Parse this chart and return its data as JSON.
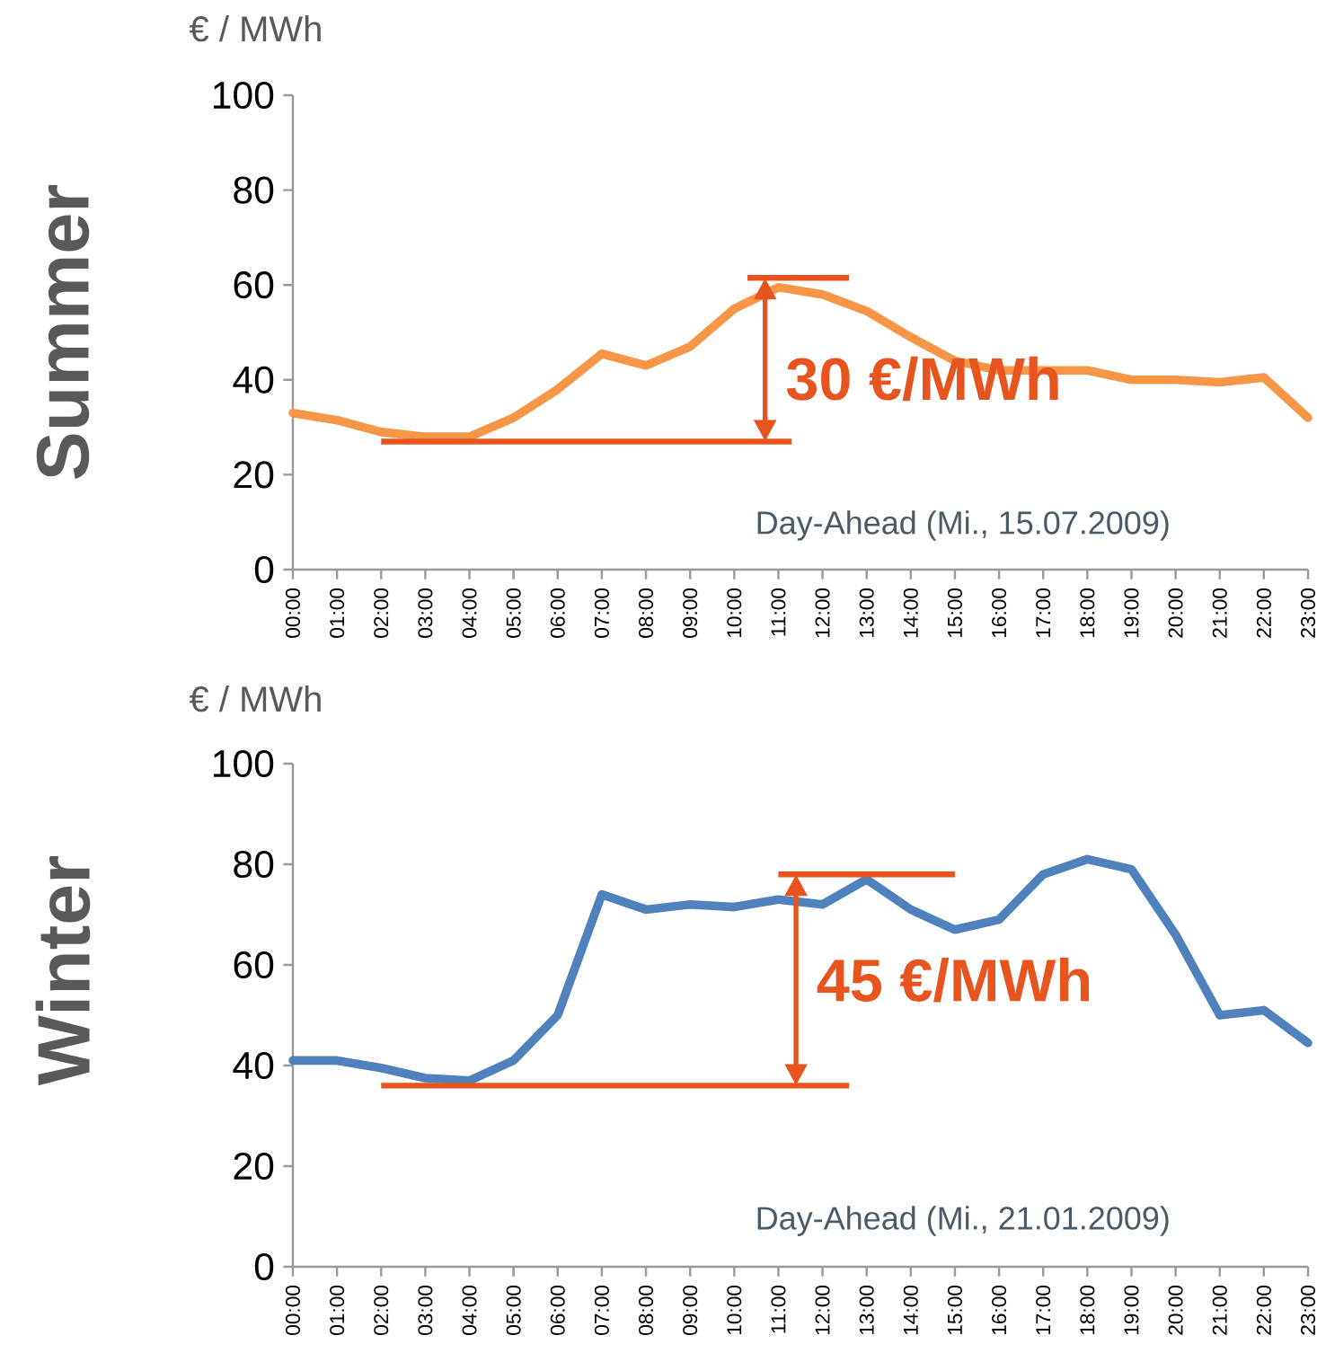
{
  "chart_data": [
    {
      "type": "line",
      "title": "Summer",
      "ylabel": "€ / MWh",
      "categories": [
        "00:00",
        "01:00",
        "02:00",
        "03:00",
        "04:00",
        "05:00",
        "06:00",
        "07:00",
        "08:00",
        "09:00",
        "10:00",
        "11:00",
        "12:00",
        "13:00",
        "14:00",
        "15:00",
        "16:00",
        "17:00",
        "18:00",
        "19:00",
        "20:00",
        "21:00",
        "22:00",
        "23:00"
      ],
      "series": [
        {
          "color": "#f79646",
          "values": [
            33,
            31.5,
            29,
            28,
            28,
            32,
            38,
            45.5,
            43,
            47,
            55,
            59.5,
            58,
            54.5,
            49,
            44,
            42,
            42,
            42,
            40,
            40,
            39.5,
            40.5,
            32
          ]
        }
      ],
      "ylim": [
        0,
        100
      ],
      "yticks": [
        0,
        20,
        40,
        60,
        80,
        100
      ],
      "marker": "none",
      "line_style": "solid",
      "ref_lines": [
        {
          "axis": "y",
          "value": 27,
          "color": "#e8541e"
        },
        {
          "axis": "y",
          "value": 61.5,
          "label": "30 €/MWh",
          "color": "#e8541e"
        }
      ],
      "annotations": [
        "Day-Ahead (Mi., 15.07.2009)"
      ]
    },
    {
      "type": "line",
      "title": "Winter",
      "ylabel": "€ / MWh",
      "categories": [
        "00:00",
        "01:00",
        "02:00",
        "03:00",
        "04:00",
        "05:00",
        "06:00",
        "07:00",
        "08:00",
        "09:00",
        "10:00",
        "11:00",
        "12:00",
        "13:00",
        "14:00",
        "15:00",
        "16:00",
        "17:00",
        "18:00",
        "19:00",
        "20:00",
        "21:00",
        "22:00",
        "23:00"
      ],
      "series": [
        {
          "color": "#4f81bd",
          "values": [
            41,
            41,
            39.5,
            37.5,
            37,
            41,
            50,
            74,
            71,
            72,
            71.5,
            73,
            72,
            77,
            71,
            67,
            69,
            78,
            81,
            79,
            66,
            50,
            51,
            44.5
          ]
        }
      ],
      "ylim": [
        0,
        100
      ],
      "yticks": [
        0,
        20,
        40,
        60,
        80,
        100
      ],
      "marker": "none",
      "line_style": "solid",
      "ref_lines": [
        {
          "axis": "y",
          "value": 36,
          "color": "#e8541e"
        },
        {
          "axis": "y",
          "value": 78,
          "label": "45 €/MWh",
          "color": "#e8541e"
        }
      ],
      "annotations": [
        "Day-Ahead (Mi., 21.01.2009)"
      ]
    }
  ]
}
